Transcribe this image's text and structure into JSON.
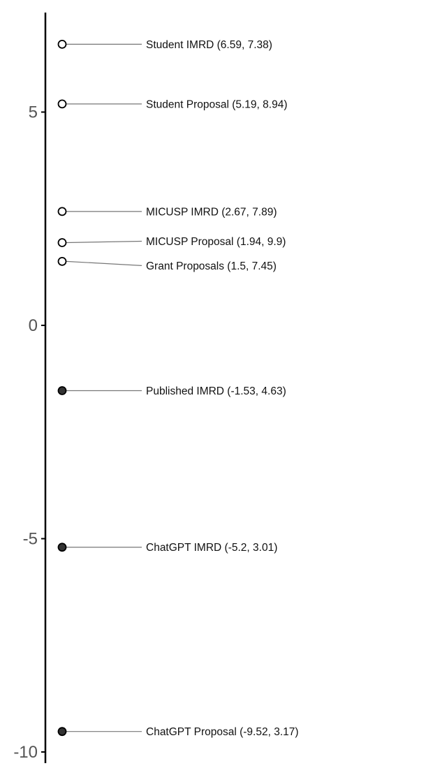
{
  "chart_data": {
    "type": "scatter",
    "title": "",
    "xlabel": "",
    "ylabel": "",
    "ylim": [
      -10,
      7.3
    ],
    "y_ticks": [
      5,
      0,
      -5,
      -10
    ],
    "grid": false,
    "legend": "none",
    "points": [
      {
        "label": "Student IMRD (6.59, 7.38)",
        "y": 6.59,
        "filled": false
      },
      {
        "label": "Student Proposal (5.19, 8.94)",
        "y": 5.19,
        "filled": false
      },
      {
        "label": "MICUSP IMRD (2.67, 7.89)",
        "y": 2.67,
        "filled": false
      },
      {
        "label": "MICUSP Proposal (1.94, 9.9)",
        "y": 1.94,
        "filled": false
      },
      {
        "label": "Grant Proposals (1.5, 7.45)",
        "y": 1.5,
        "filled": false
      },
      {
        "label": "Published IMRD (-1.53, 4.63)",
        "y": -1.53,
        "filled": true
      },
      {
        "label": "ChatGPT IMRD (-5.2, 3.01)",
        "y": -5.2,
        "filled": true
      },
      {
        "label": "ChatGPT Proposal (-9.52, 3.17)",
        "y": -9.52,
        "filled": true
      }
    ],
    "colors": {
      "filled_point": "#333333",
      "hollow_point": "#ffffff",
      "point_stroke": "#000000",
      "leader_line": "#777777",
      "axis": "#000000"
    }
  }
}
